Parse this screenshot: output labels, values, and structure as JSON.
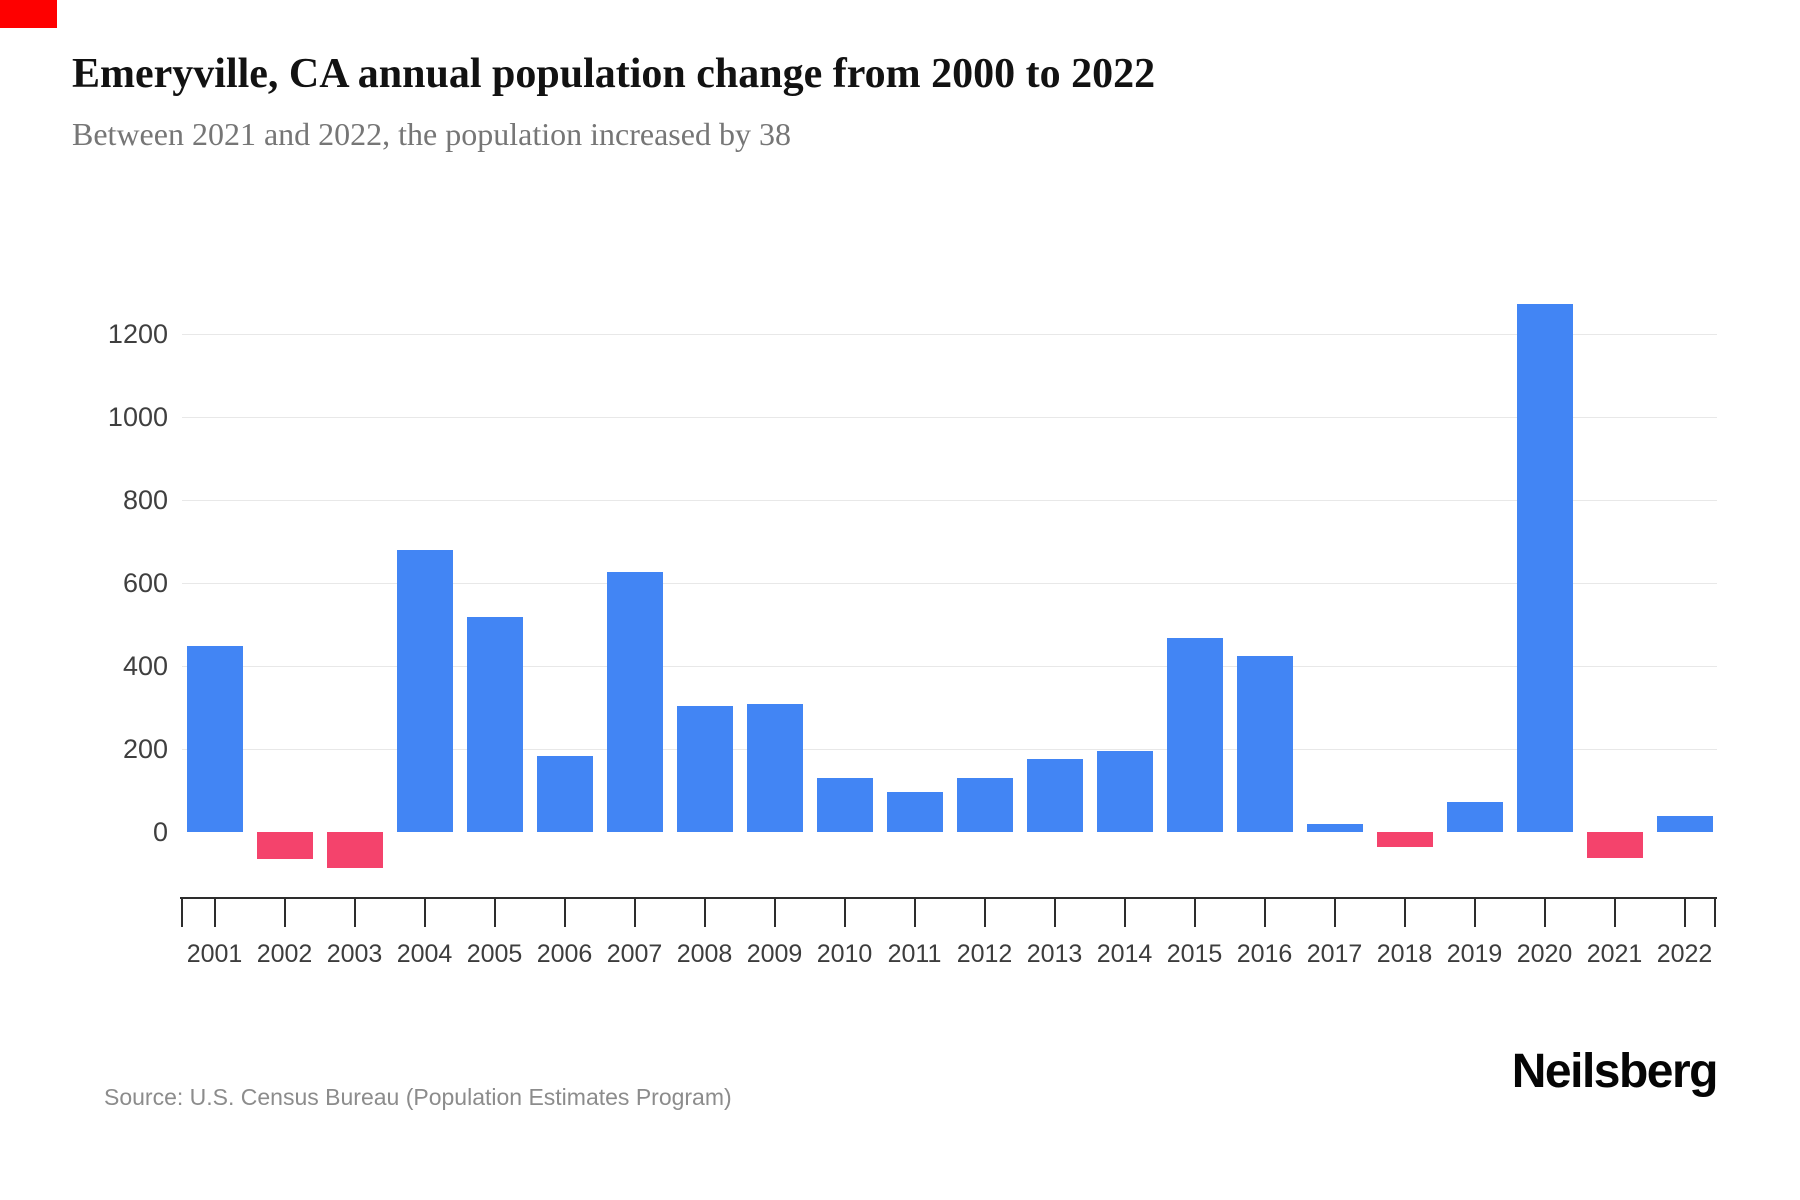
{
  "marker": {
    "color": "#fe0000"
  },
  "header": {
    "title": "Emeryville, CA annual population change from 2000 to 2022",
    "subtitle": "Between 2021 and 2022, the population increased by 38"
  },
  "chart_data": {
    "type": "bar",
    "title": "Emeryville, CA annual population change from 2000 to 2022",
    "subtitle": "Between 2021 and 2022, the population increased by 38",
    "categories": [
      "2001",
      "2002",
      "2003",
      "2004",
      "2005",
      "2006",
      "2007",
      "2008",
      "2009",
      "2010",
      "2011",
      "2012",
      "2013",
      "2014",
      "2015",
      "2016",
      "2017",
      "2018",
      "2019",
      "2020",
      "2021",
      "2022"
    ],
    "values": [
      447,
      -66,
      -86,
      680,
      517,
      182,
      627,
      303,
      308,
      129,
      96,
      131,
      177,
      195,
      467,
      424,
      19,
      -36,
      72,
      1272,
      -63,
      38
    ],
    "xlabel": "",
    "ylabel": "",
    "yticks": [
      0,
      200,
      400,
      600,
      800,
      1000,
      1200
    ],
    "ylim": [
      -120,
      1300
    ],
    "grid": true,
    "legend": false,
    "colors": {
      "positive": "#4285F4",
      "negative": "#F4436C"
    }
  },
  "footer": {
    "source": "Source: U.S. Census Bureau (Population Estimates Program)",
    "brand": "Neilsberg"
  }
}
